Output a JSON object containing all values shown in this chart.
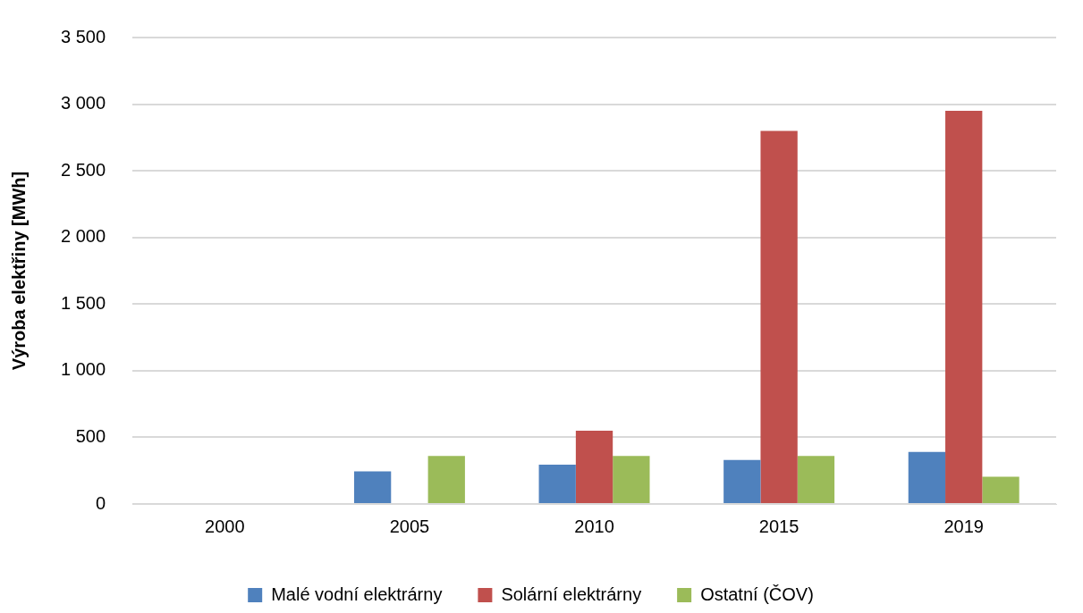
{
  "chart_data": {
    "type": "bar",
    "ylabel": "Výroba elektřiny [MWh]",
    "categories": [
      "2000",
      "2005",
      "2010",
      "2015",
      "2019"
    ],
    "series": [
      {
        "name": "Malé vodní elektrárny",
        "color": "#4f81bd",
        "values": [
          0,
          245,
          295,
          330,
          390
        ]
      },
      {
        "name": "Solární elektrárny",
        "color": "#c0504d",
        "values": [
          0,
          0,
          550,
          2800,
          2950
        ]
      },
      {
        "name": "Ostatní (ČOV)",
        "color": "#9bbb59",
        "values": [
          0,
          360,
          360,
          360,
          205
        ]
      }
    ],
    "ylim": [
      0,
      3500
    ],
    "yticks": [
      {
        "value": 0,
        "label": "0"
      },
      {
        "value": 500,
        "label": "500"
      },
      {
        "value": 1000,
        "label": "1 000"
      },
      {
        "value": 1500,
        "label": "1 500"
      },
      {
        "value": 2000,
        "label": "2 000"
      },
      {
        "value": 2500,
        "label": "2 500"
      },
      {
        "value": 3000,
        "label": "3 000"
      },
      {
        "value": 3500,
        "label": "3 500"
      }
    ],
    "grid": "y",
    "legend": "bottom"
  }
}
